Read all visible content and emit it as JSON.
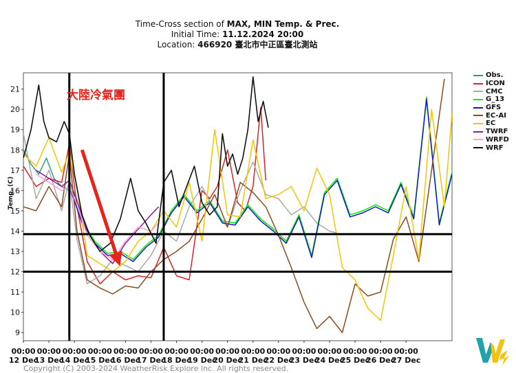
{
  "header": {
    "line1_prefix": "Time-Cross section of ",
    "line1_bold": "MAX, MIN Temp. & Prec.",
    "line2_prefix": "Initial Time: ",
    "line2_bold": "11.12.2024 20:00",
    "line3_prefix": "Location: ",
    "line3_bold": "466920 臺北市中正區臺北測站"
  },
  "annotation": {
    "text": "大陸冷氣團",
    "color": "#e8231b"
  },
  "copyright": "Copyright (C) 2003-2024 WeatherRisk Explore Inc. All rights reserved.",
  "chart_data": {
    "type": "line",
    "title": "Time-Cross section of MAX, MIN Temp. & Prec.",
    "ylabel": "Temp. (C)",
    "ylim": [
      8.6,
      21.8
    ],
    "yticks": [
      9,
      10,
      11,
      12,
      13,
      14,
      15,
      16,
      17,
      18,
      19,
      20,
      21
    ],
    "xlim": [
      0,
      16.8
    ],
    "xticks": [
      {
        "x": 0,
        "time": "00:00",
        "date": "12 Dec"
      },
      {
        "x": 1,
        "time": "00:00",
        "date": "13 Dec"
      },
      {
        "x": 2,
        "time": "00:00",
        "date": "14 Dec"
      },
      {
        "x": 3,
        "time": "00:00",
        "date": "15 Dec"
      },
      {
        "x": 4,
        "time": "00:00",
        "date": "16 Dec"
      },
      {
        "x": 5,
        "time": "00:00",
        "date": "17 Dec"
      },
      {
        "x": 6,
        "time": "00:00",
        "date": "18 Dec"
      },
      {
        "x": 7,
        "time": "00:00",
        "date": "19 Dec"
      },
      {
        "x": 8,
        "time": "00:00",
        "date": "20 Dec"
      },
      {
        "x": 9,
        "time": "00:00",
        "date": "21 Dec"
      },
      {
        "x": 10,
        "time": "00:00",
        "date": "22 Dec"
      },
      {
        "x": 11,
        "time": "00:00",
        "date": "23 Dec"
      },
      {
        "x": 12,
        "time": "00:00",
        "date": "24 Dec"
      },
      {
        "x": 13,
        "time": "00:00",
        "date": "25 Dec"
      },
      {
        "x": 14,
        "time": "00:00",
        "date": "26 Dec"
      },
      {
        "x": 15,
        "time": "00:00",
        "date": "27 Dec"
      }
    ],
    "hlines": [
      13.85,
      12.0
    ],
    "vlines": [
      1.8,
      5.5
    ],
    "arrow": {
      "from": [
        2.3,
        18.0
      ],
      "to": [
        3.7,
        12.6
      ]
    },
    "series": [
      {
        "name": "Obs.",
        "color": "#2e9e7a",
        "x": [
          0,
          0.3,
          0.6,
          0.9,
          1.2,
          1.5,
          1.8,
          2.1
        ],
        "values": [
          18.0,
          17.3,
          16.8,
          17.6,
          16.6,
          16.2,
          16.0,
          15.6
        ]
      },
      {
        "name": "ICON",
        "color": "#e02020",
        "x": [
          0,
          0.5,
          1.0,
          1.5,
          1.8,
          2.1,
          2.5,
          3.0,
          3.5,
          4.0,
          4.5,
          5.0,
          5.5,
          6.0,
          6.5,
          7.0,
          7.3,
          7.6,
          8.0,
          8.4,
          8.7,
          9.0,
          9.3,
          9.5
        ],
        "values": [
          17.2,
          16.2,
          16.6,
          16.4,
          18.3,
          15.2,
          12.5,
          11.4,
          12.0,
          11.6,
          11.8,
          11.7,
          13.2,
          11.8,
          11.6,
          16.0,
          15.6,
          16.2,
          18.0,
          15.4,
          15.0,
          16.2,
          20.1,
          16.5
        ]
      },
      {
        "name": "CMC",
        "color": "#a8a8a8",
        "x": [
          0,
          0.5,
          1.0,
          1.5,
          1.8,
          2.1,
          2.5,
          3.0,
          3.5,
          4.0,
          4.5,
          5.0,
          5.5,
          6.0,
          6.5,
          7.0,
          7.5,
          8.0,
          8.5,
          9.0,
          9.5,
          10.0,
          10.5,
          11.0,
          11.5,
          12.0,
          12.3
        ],
        "values": [
          18.8,
          15.6,
          17.0,
          15.0,
          16.5,
          13.6,
          11.4,
          11.8,
          12.6,
          12.3,
          12.0,
          12.8,
          14.0,
          13.5,
          15.2,
          16.2,
          15.0,
          14.2,
          16.0,
          17.4,
          15.8,
          15.6,
          14.8,
          15.2,
          14.4,
          14.0,
          13.9
        ]
      },
      {
        "name": "G_13",
        "color": "#00ee00",
        "x": [
          1.8,
          2.3,
          2.8,
          3.3,
          3.8,
          4.3,
          4.8,
          5.3,
          5.8,
          6.3,
          6.8,
          7.3,
          7.8,
          8.3,
          8.8,
          9.3,
          9.8,
          10.3,
          10.8,
          11.3,
          11.8,
          12.3,
          12.8,
          13.3,
          13.8,
          14.3,
          14.8,
          15.3,
          15.8,
          16.3,
          16.8
        ],
        "values": [
          16.3,
          14.5,
          13.5,
          12.9,
          13.0,
          12.6,
          13.3,
          13.8,
          15.0,
          15.8,
          15.0,
          15.5,
          14.5,
          14.4,
          15.3,
          14.6,
          14.1,
          13.5,
          14.8,
          12.8,
          15.9,
          16.6,
          14.8,
          15.0,
          15.3,
          15.0,
          16.4,
          14.7,
          20.6,
          14.4,
          16.9
        ]
      },
      {
        "name": "GFS",
        "color": "#1515cc",
        "x": [
          1.8,
          2.3,
          2.8,
          3.3,
          3.8,
          4.3,
          4.8,
          5.3,
          5.8,
          6.3,
          6.8,
          7.3,
          7.8,
          8.3,
          8.8,
          9.3,
          9.8,
          10.3,
          10.8,
          11.3,
          11.8,
          12.3,
          12.8,
          13.3,
          13.8,
          14.3,
          14.8,
          15.3,
          15.8,
          16.3,
          16.8
        ],
        "values": [
          16.2,
          14.4,
          13.4,
          12.8,
          12.9,
          12.5,
          13.2,
          13.7,
          14.9,
          15.7,
          14.9,
          15.4,
          14.4,
          14.3,
          15.2,
          14.5,
          14.0,
          13.4,
          14.7,
          12.7,
          15.8,
          16.5,
          14.7,
          14.9,
          15.2,
          14.9,
          16.3,
          14.6,
          20.5,
          14.3,
          16.8
        ]
      },
      {
        "name": "EC-AI",
        "color": "#8b4a1c",
        "x": [
          0,
          0.5,
          1.0,
          1.5,
          1.8,
          2.1,
          2.5,
          3.0,
          3.5,
          4.0,
          4.5,
          5.0,
          5.5,
          6.0,
          6.5,
          7.0,
          7.5,
          8.0,
          8.5,
          9.0,
          9.5,
          10.0,
          10.5,
          11.0,
          11.5,
          12.0,
          12.5,
          13.0,
          13.5,
          14.0,
          14.5,
          15.0,
          15.5,
          16.0,
          16.5
        ],
        "values": [
          15.2,
          15.0,
          16.2,
          15.2,
          17.8,
          14.0,
          11.6,
          11.2,
          10.9,
          11.3,
          11.2,
          12.0,
          12.6,
          13.0,
          13.5,
          14.6,
          15.8,
          14.2,
          16.4,
          15.9,
          15.2,
          13.8,
          12.2,
          10.5,
          9.2,
          9.8,
          9.0,
          11.4,
          10.8,
          11.0,
          13.6,
          14.7,
          12.5,
          17.0,
          21.5
        ]
      },
      {
        "name": "EC",
        "color": "#f2c500",
        "x": [
          0,
          0.5,
          1.0,
          1.5,
          1.8,
          2.1,
          2.5,
          3.0,
          3.5,
          4.0,
          4.5,
          5.0,
          5.5,
          6.0,
          6.5,
          7.0,
          7.5,
          8.0,
          8.5,
          9.0,
          9.5,
          10.0,
          10.5,
          11.0,
          11.5,
          12.0,
          12.5,
          13.0,
          13.5,
          14.0,
          14.5,
          15.0,
          15.5,
          16.0,
          16.5,
          16.8
        ],
        "values": [
          17.8,
          17.2,
          18.6,
          16.9,
          17.9,
          16.2,
          12.8,
          12.4,
          12.0,
          12.5,
          13.5,
          14.0,
          15.0,
          14.2,
          16.4,
          13.5,
          19.0,
          14.8,
          14.7,
          18.5,
          15.6,
          15.8,
          16.2,
          15.0,
          17.1,
          15.8,
          12.2,
          11.6,
          10.2,
          9.6,
          12.8,
          16.2,
          12.6,
          20.0,
          15.2,
          19.8
        ]
      },
      {
        "name": "TWRF",
        "color": "#8a1a9a",
        "x": [
          0.5,
          1.0,
          1.5,
          1.8,
          2.1,
          2.5,
          3.0,
          3.5,
          4.0,
          4.5,
          5.0,
          5.3
        ],
        "values": [
          17.0,
          16.6,
          16.2,
          16.5,
          15.5,
          14.0,
          13.0,
          12.4,
          13.4,
          14.1,
          14.8,
          15.2
        ]
      },
      {
        "name": "WRFD",
        "color": "#ff9ed8",
        "x": [
          0.5,
          1.0,
          1.5,
          1.8,
          2.1,
          2.5,
          3.0,
          3.5,
          4.0,
          4.5,
          5.0,
          5.3
        ],
        "values": [
          16.8,
          16.4,
          16.0,
          16.2,
          15.3,
          13.8,
          13.0,
          12.6,
          13.5,
          14.2,
          14.0,
          14.4
        ]
      },
      {
        "name": "WRF",
        "color": "#111111",
        "x": [
          0,
          0.3,
          0.6,
          0.8,
          1.0,
          1.3,
          1.6,
          1.8,
          2.0,
          2.3,
          2.6,
          3.0,
          3.4,
          3.8,
          4.2,
          4.5,
          4.8,
          5.2,
          5.5,
          5.8,
          6.1,
          6.4,
          6.7,
          7.0,
          7.3,
          7.6,
          7.8,
          8.0,
          8.2,
          8.4,
          8.6,
          8.8,
          9.0,
          9.2,
          9.4,
          9.6
        ],
        "values": [
          17.6,
          19.0,
          21.2,
          19.4,
          18.6,
          18.4,
          19.4,
          18.8,
          16.8,
          14.8,
          13.8,
          13.0,
          13.4,
          14.6,
          16.6,
          15.0,
          14.4,
          13.4,
          16.4,
          17.0,
          15.2,
          16.2,
          17.2,
          15.4,
          14.8,
          15.2,
          18.8,
          17.2,
          17.8,
          16.8,
          17.6,
          19.0,
          21.6,
          19.4,
          20.4,
          19.1
        ]
      }
    ]
  }
}
